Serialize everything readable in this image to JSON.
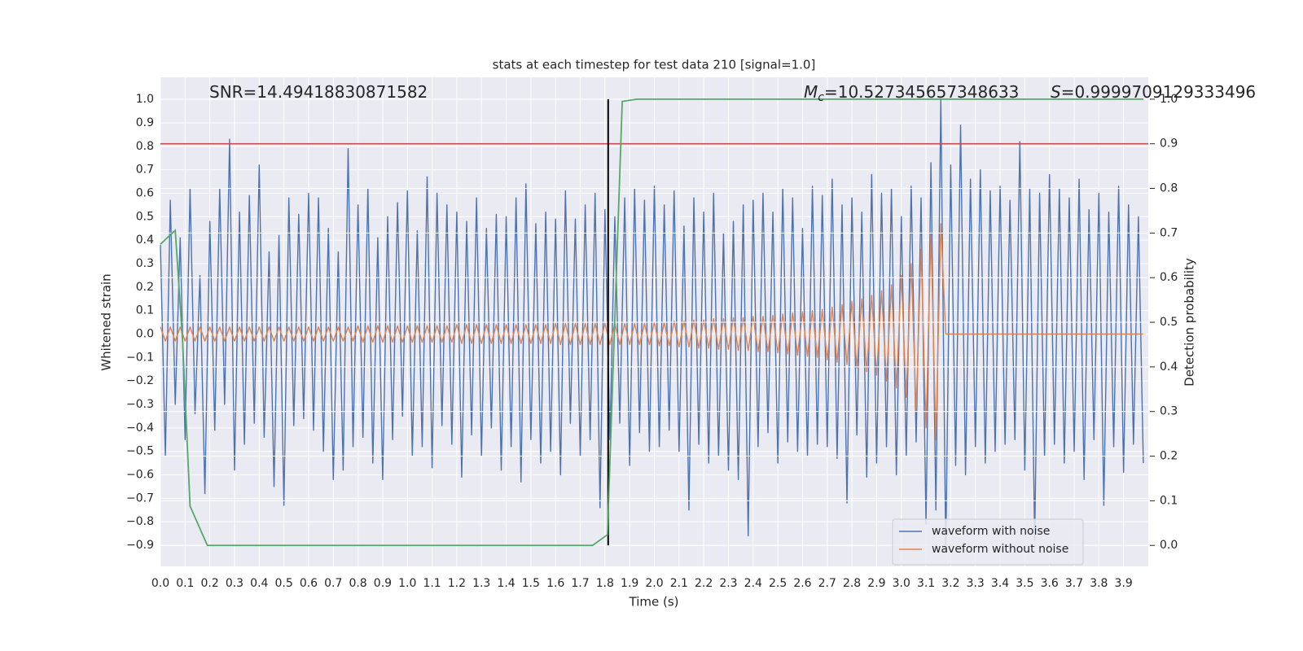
{
  "chart_data": {
    "type": "line",
    "title": "stats at each timestep for test data 210 [signal=1.0]",
    "xlabel": "Time (s)",
    "ylabel": "Whitened strain",
    "y2label": "Detection probability",
    "annotations": [
      {
        "text": "SNR=14.49418830871582"
      },
      {
        "symbol": "M",
        "subscript": "c",
        "text": "=10.527345657348633"
      },
      {
        "symbol": "S",
        "text": "=0.9999709129333496"
      }
    ],
    "xlim": [
      0,
      4.0
    ],
    "xticks": [
      {
        "value": 0,
        "label": "0.0"
      },
      0.1,
      0.2,
      0.3,
      0.4,
      0.5,
      0.6,
      0.7,
      0.8,
      0.9,
      {
        "value": 1,
        "label": "1.0"
      },
      1.1,
      1.2,
      1.3,
      1.4,
      1.5,
      1.6,
      1.7,
      1.8,
      1.9,
      {
        "value": 2,
        "label": "2.0"
      },
      2.1,
      2.2,
      2.3,
      2.4,
      2.5,
      2.6,
      2.7,
      2.8,
      2.9,
      {
        "value": 3,
        "label": "3.0"
      },
      3.1,
      3.2,
      3.3,
      3.4,
      3.5,
      3.6,
      3.7,
      3.8,
      3.9
    ],
    "ylim": [
      -0.99,
      1.094
    ],
    "yticks": [
      {
        "value": -0.9,
        "label": "−0.9"
      },
      {
        "value": -0.8,
        "label": "−0.8"
      },
      {
        "value": -0.7,
        "label": "−0.7"
      },
      {
        "value": -0.6,
        "label": "−0.6"
      },
      {
        "value": -0.5,
        "label": "−0.5"
      },
      {
        "value": -0.4,
        "label": "−0.4"
      },
      {
        "value": -0.3,
        "label": "−0.3"
      },
      {
        "value": -0.2,
        "label": "−0.2"
      },
      {
        "value": -0.1,
        "label": "−0.1"
      },
      {
        "value": 0,
        "label": "0.0"
      },
      0.1,
      0.2,
      0.3,
      0.4,
      0.5,
      0.6,
      0.7,
      0.8,
      0.9,
      {
        "value": 1,
        "label": "1.0"
      }
    ],
    "y2lim": [
      -0.047,
      1.049
    ],
    "y2ticks": [
      {
        "value": 0,
        "label": "0.0"
      },
      0.1,
      0.2,
      0.3,
      0.4,
      0.5,
      0.6,
      0.7,
      0.8,
      0.9,
      {
        "value": 1,
        "label": "1.0"
      }
    ],
    "grid": true,
    "legend": "lower right",
    "x": [
      0,
      0.02,
      0.04,
      0.06,
      0.08,
      0.1,
      0.12,
      0.14,
      0.16,
      0.18,
      0.2,
      0.22,
      0.24,
      0.26,
      0.28,
      0.3,
      0.32,
      0.34,
      0.36,
      0.38,
      0.4,
      0.42,
      0.44,
      0.46,
      0.48,
      0.5,
      0.52,
      0.54,
      0.56,
      0.58,
      0.6,
      0.62,
      0.64,
      0.66,
      0.68,
      0.7,
      0.72,
      0.74,
      0.76,
      0.78,
      0.8,
      0.82,
      0.84,
      0.86,
      0.88,
      0.9,
      0.92,
      0.94,
      0.96,
      0.98,
      1,
      1.02,
      1.04,
      1.06,
      1.08,
      1.1,
      1.12,
      1.14,
      1.16,
      1.18,
      1.2,
      1.22,
      1.24,
      1.26,
      1.28,
      1.3,
      1.32,
      1.34,
      1.36,
      1.38,
      1.4,
      1.42,
      1.44,
      1.46,
      1.48,
      1.5,
      1.52,
      1.54,
      1.56,
      1.58,
      1.6,
      1.62,
      1.64,
      1.66,
      1.68,
      1.7,
      1.72,
      1.74,
      1.76,
      1.78,
      1.8,
      1.82,
      1.84,
      1.86,
      1.88,
      1.9,
      1.92,
      1.94,
      1.96,
      1.98,
      2,
      2.02,
      2.04,
      2.06,
      2.08,
      2.1,
      2.12,
      2.14,
      2.16,
      2.18,
      2.2,
      2.22,
      2.24,
      2.26,
      2.28,
      2.3,
      2.32,
      2.34,
      2.36,
      2.38,
      2.4,
      2.42,
      2.44,
      2.46,
      2.48,
      2.5,
      2.52,
      2.54,
      2.56,
      2.58,
      2.6,
      2.62,
      2.64,
      2.66,
      2.68,
      2.7,
      2.72,
      2.74,
      2.76,
      2.78,
      2.8,
      2.82,
      2.84,
      2.86,
      2.88,
      2.9,
      2.92,
      2.94,
      2.96,
      2.98,
      3,
      3.02,
      3.04,
      3.06,
      3.08,
      3.1,
      3.12,
      3.14,
      3.16,
      3.18,
      3.2,
      3.22,
      3.24,
      3.26,
      3.28,
      3.3,
      3.32,
      3.34,
      3.36,
      3.38,
      3.4,
      3.42,
      3.44,
      3.46,
      3.48,
      3.5,
      3.52,
      3.54,
      3.56,
      3.58,
      3.6,
      3.62,
      3.64,
      3.66,
      3.68,
      3.7,
      3.72,
      3.74,
      3.76,
      3.78,
      3.8,
      3.82,
      3.84,
      3.86,
      3.88,
      3.9,
      3.92,
      3.94,
      3.96,
      3.98
    ],
    "series": [
      {
        "name": "waveform with noise",
        "color": "#4c72b0",
        "values": [
          0.38,
          -0.52,
          0.57,
          -0.3,
          0.41,
          -0.45,
          0.62,
          -0.34,
          0.25,
          -0.68,
          0.48,
          -0.41,
          0.62,
          -0.3,
          0.83,
          -0.58,
          0.52,
          -0.47,
          0.59,
          -0.38,
          0.72,
          -0.44,
          0.35,
          -0.65,
          0.42,
          -0.73,
          0.58,
          -0.39,
          0.51,
          -0.36,
          0.6,
          -0.41,
          0.58,
          -0.5,
          0.45,
          -0.62,
          0.35,
          -0.58,
          0.79,
          -0.48,
          0.55,
          -0.44,
          0.62,
          -0.55,
          0.41,
          -0.62,
          0.5,
          -0.45,
          0.56,
          -0.35,
          0.61,
          -0.52,
          0.44,
          -0.48,
          0.67,
          -0.57,
          0.6,
          -0.39,
          0.55,
          -0.47,
          0.52,
          -0.61,
          0.48,
          -0.43,
          0.58,
          -0.52,
          0.45,
          -0.4,
          0.51,
          -0.58,
          0.5,
          -0.48,
          0.58,
          -0.63,
          0.64,
          -0.45,
          0.47,
          -0.55,
          0.52,
          -0.5,
          0.49,
          -0.6,
          0.61,
          -0.38,
          0.49,
          -0.52,
          0.55,
          -0.45,
          0.6,
          -0.74,
          0.53,
          -0.45,
          0.5,
          -0.38,
          0.58,
          -0.56,
          0.62,
          -0.42,
          0.57,
          -0.5,
          0.63,
          -0.48,
          0.55,
          -0.41,
          0.61,
          -0.5,
          0.46,
          -0.75,
          0.58,
          -0.47,
          0.52,
          -0.55,
          0.6,
          -0.52,
          0.43,
          -0.58,
          0.48,
          -0.62,
          0.55,
          -0.86,
          0.57,
          -0.48,
          0.6,
          -0.42,
          0.52,
          -0.55,
          0.62,
          -0.46,
          0.58,
          -0.5,
          0.45,
          -0.52,
          0.63,
          -0.47,
          0.59,
          -0.48,
          0.66,
          -0.53,
          0.55,
          -0.72,
          0.58,
          -0.43,
          0.52,
          -0.61,
          0.68,
          -0.55,
          0.6,
          -0.48,
          0.62,
          -0.6,
          0.5,
          -0.52,
          0.63,
          -0.46,
          0.58,
          -0.81,
          0.73,
          -0.75,
          1.0,
          -0.93,
          0.72,
          -0.56,
          0.89,
          -0.6,
          0.66,
          -0.48,
          0.7,
          -0.55,
          0.61,
          -0.5,
          0.63,
          -0.47,
          0.57,
          -0.45,
          0.82,
          -0.58,
          0.62,
          -0.88,
          0.6,
          -0.52,
          0.68,
          -0.47,
          0.62,
          -0.55,
          0.58,
          -0.5,
          0.66,
          -0.62,
          0.53,
          -0.45,
          0.6,
          -0.73,
          0.52,
          -0.48,
          0.63,
          -0.59,
          0.55,
          -0.47,
          0.5,
          -0.55
        ]
      },
      {
        "name": "waveform without noise",
        "color": "#dd8452",
        "values": [
          0.03,
          -0.03,
          0.03,
          -0.03,
          0.03,
          -0.03,
          0.03,
          -0.03,
          0.03,
          -0.03,
          0.03,
          -0.03,
          0.03,
          -0.03,
          0.03,
          -0.03,
          0.03,
          -0.03,
          0.03,
          -0.03,
          0.03,
          -0.03,
          0.03,
          -0.03,
          0.03,
          -0.03,
          0.03,
          -0.03,
          0.03,
          -0.03,
          0.03,
          -0.03,
          0.03,
          -0.03,
          0.03,
          -0.03,
          0.03,
          -0.03,
          0.03,
          -0.03,
          0.035,
          -0.035,
          0.035,
          -0.035,
          0.035,
          -0.035,
          0.035,
          -0.035,
          0.035,
          -0.035,
          0.035,
          -0.035,
          0.035,
          -0.035,
          0.035,
          -0.035,
          0.035,
          -0.035,
          0.035,
          -0.035,
          0.04,
          -0.04,
          0.04,
          -0.04,
          0.04,
          -0.04,
          0.04,
          -0.04,
          0.04,
          -0.04,
          0.04,
          -0.04,
          0.04,
          -0.04,
          0.04,
          -0.04,
          0.04,
          -0.04,
          0.04,
          -0.04,
          0.045,
          -0.045,
          0.045,
          -0.045,
          0.045,
          -0.045,
          0.045,
          -0.045,
          0.045,
          -0.045,
          0.045,
          -0.045,
          0.045,
          -0.045,
          0.045,
          -0.045,
          0.045,
          -0.045,
          0.045,
          -0.045,
          0.05,
          -0.05,
          0.05,
          -0.05,
          0.055,
          -0.055,
          0.055,
          -0.055,
          0.06,
          -0.06,
          0.06,
          -0.06,
          0.065,
          -0.065,
          0.065,
          -0.065,
          0.07,
          -0.07,
          0.07,
          -0.07,
          0.075,
          -0.075,
          0.075,
          -0.075,
          0.08,
          -0.08,
          0.085,
          -0.085,
          0.09,
          -0.09,
          0.095,
          -0.095,
          0.1,
          -0.1,
          0.105,
          -0.11,
          0.115,
          -0.12,
          0.125,
          -0.13,
          0.14,
          -0.145,
          0.15,
          -0.16,
          0.165,
          -0.175,
          0.185,
          -0.2,
          0.21,
          -0.23,
          0.25,
          -0.27,
          0.3,
          -0.33,
          0.36,
          -0.4,
          0.43,
          -0.45,
          0.47,
          0,
          0,
          0,
          0,
          0,
          0,
          0,
          0,
          0,
          0,
          0,
          0,
          0,
          0,
          0,
          0,
          0,
          0,
          0,
          0,
          0,
          0,
          0,
          0,
          0,
          0,
          0,
          0,
          0,
          0,
          0,
          0,
          0,
          0,
          0,
          0,
          0,
          0,
          0,
          0,
          0
        ]
      },
      {
        "axis": "y2",
        "color": "#55a868",
        "x": [
          0,
          0.06,
          0.09,
          0.12,
          0.19,
          1.75,
          1.81,
          1.87,
          1.93,
          3.98
        ],
        "values": [
          0.675,
          0.706,
          0.456,
          0.088,
          0,
          0,
          0.024,
          0.995,
          1,
          1
        ]
      }
    ],
    "hline": {
      "value": 0.9,
      "axis": "y2",
      "color": "#c44e52"
    },
    "vline": {
      "value": 1.813,
      "y2": [
        0,
        1
      ],
      "color": "#000000"
    }
  }
}
